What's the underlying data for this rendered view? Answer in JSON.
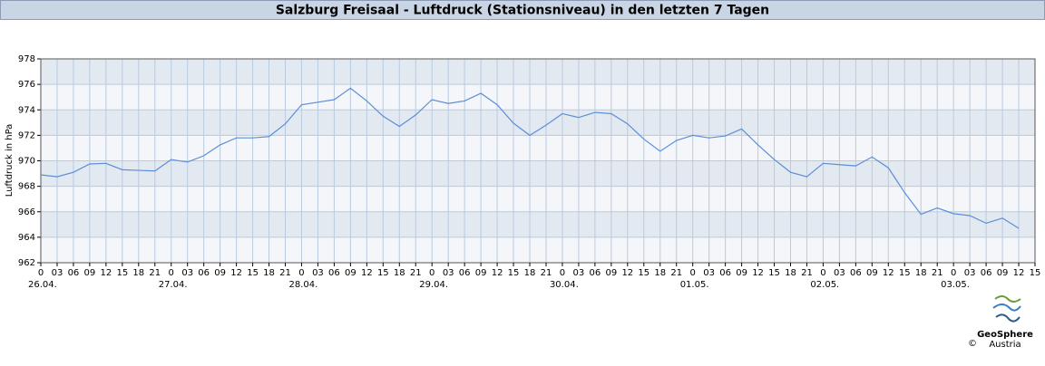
{
  "chart_data": {
    "type": "line",
    "title": "Salzburg Freisaal - Luftdruck (Stationsniveau) in den letzten 7 Tagen",
    "ylabel": "Luftdruck in hPa",
    "categories": [
      "0",
      "03",
      "06",
      "09",
      "12",
      "15",
      "18",
      "21",
      "0",
      "03",
      "06",
      "09",
      "12",
      "15",
      "18",
      "21",
      "0",
      "03",
      "06",
      "09",
      "12",
      "15",
      "18",
      "21",
      "0",
      "03",
      "06",
      "09",
      "12",
      "15",
      "18",
      "21",
      "0",
      "03",
      "06",
      "09",
      "12",
      "15",
      "18",
      "21",
      "0",
      "03",
      "06",
      "09",
      "12",
      "15",
      "18",
      "21",
      "0",
      "03",
      "06",
      "09",
      "12",
      "15",
      "18",
      "21",
      "0",
      "03",
      "06",
      "09",
      "12",
      "15"
    ],
    "day_labels": [
      "26.04.",
      "27.04.",
      "28.04.",
      "29.04.",
      "30.04.",
      "01.05.",
      "02.05.",
      "03.05."
    ],
    "series": [
      {
        "color": "#5b8ed6",
        "values": [
          968.9,
          968.75,
          969.1,
          969.75,
          969.8,
          969.3,
          969.25,
          969.2,
          970.1,
          969.9,
          970.4,
          971.25,
          971.8,
          971.8,
          971.9,
          972.9,
          974.4,
          974.6,
          974.8,
          975.7,
          974.7,
          973.5,
          972.7,
          973.6,
          974.8,
          974.5,
          974.7,
          975.3,
          974.4,
          972.95,
          972.0,
          972.8,
          973.7,
          973.4,
          973.8,
          973.7,
          972.9,
          971.7,
          970.75,
          971.6,
          972.0,
          971.8,
          971.95,
          972.5,
          971.25,
          970.1,
          969.1,
          968.75,
          969.8,
          969.7,
          969.6,
          970.3,
          969.45,
          967.5,
          965.8,
          966.3,
          965.85,
          965.7,
          965.1,
          965.5,
          964.7,
          null
        ]
      }
    ],
    "ylim": [
      962,
      978
    ],
    "yticks": [
      962,
      964,
      966,
      968,
      970,
      972,
      974,
      976,
      978
    ],
    "grid": true
  },
  "logo": {
    "name": "GeoSphere",
    "sub": "Austria",
    "copyright": "©"
  }
}
